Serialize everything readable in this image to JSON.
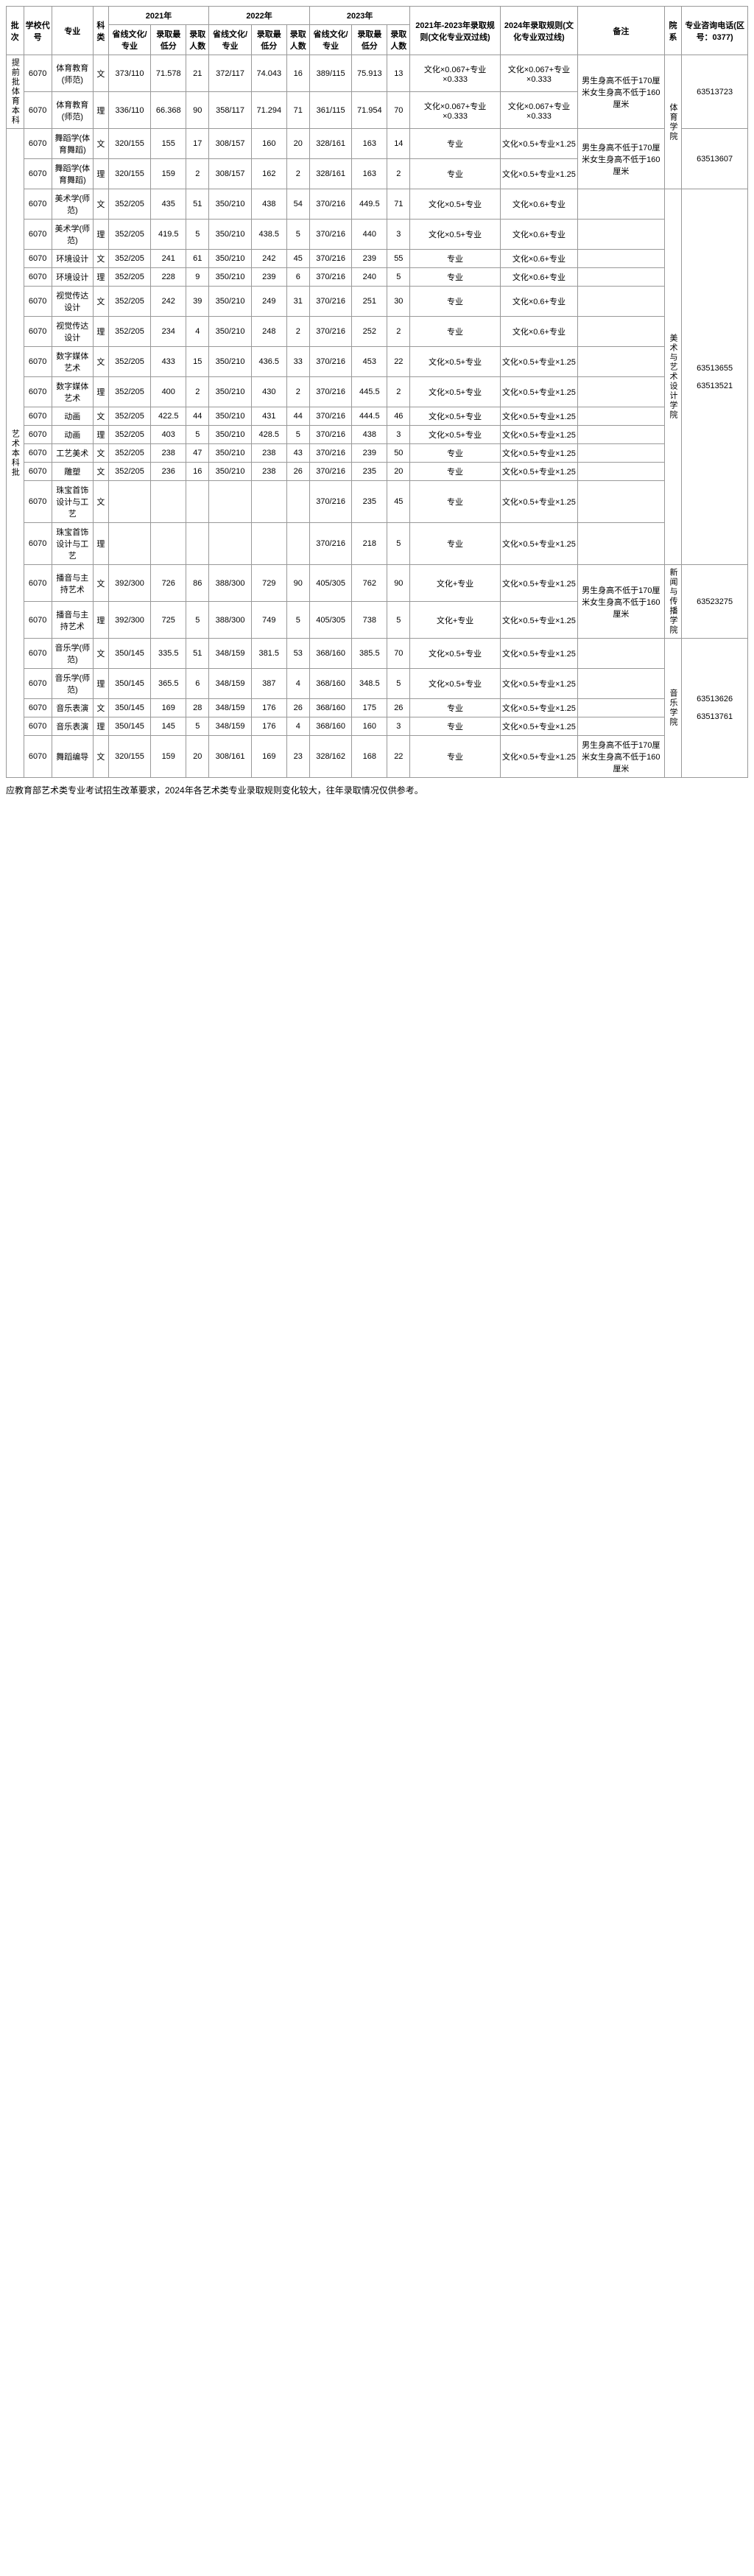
{
  "headers": {
    "batch": "批次",
    "schoolCode": "学校代号",
    "major": "专业",
    "subject": "科类",
    "year2021": "2021年",
    "year2022": "2022年",
    "year2023": "2023年",
    "provinceLine": "省线文化/专业",
    "minScore": "录取最低分",
    "count": "录取人数",
    "rule2123": "2021年-2023年录取规则(文化专业双过线)",
    "rule24": "2024年录取规则(文化专业双过线)",
    "remark": "备注",
    "dept": "院系",
    "phone": "专业咨询电话(区号：0377)"
  },
  "batch1": "提前批体育本科",
  "batch2": "艺术本科批",
  "rows": [
    {
      "major": "体育教育(师范)",
      "subj": "文",
      "p21": "373/110",
      "m21": "71.578",
      "c21": "21",
      "p22": "372/117",
      "m22": "74.043",
      "c22": "16",
      "p23": "389/115",
      "m23": "75.913",
      "c23": "13",
      "rule": "文化×0.067+专业×0.333",
      "rule24": "文化×0.067+专业×0.333"
    },
    {
      "major": "体育教育(师范)",
      "subj": "理",
      "p21": "336/110",
      "m21": "66.368",
      "c21": "90",
      "p22": "358/117",
      "m22": "71.294",
      "c22": "71",
      "p23": "361/115",
      "m23": "71.954",
      "c23": "70",
      "rule": "文化×0.067+专业×0.333",
      "rule24": "文化×0.067+专业×0.333"
    },
    {
      "major": "舞蹈学(体育舞蹈)",
      "subj": "文",
      "p21": "320/155",
      "m21": "155",
      "c21": "17",
      "p22": "308/157",
      "m22": "160",
      "c22": "20",
      "p23": "328/161",
      "m23": "163",
      "c23": "14",
      "rule": "专业",
      "rule24": "文化×0.5+专业×1.25"
    },
    {
      "major": "舞蹈学(体育舞蹈)",
      "subj": "理",
      "p21": "320/155",
      "m21": "159",
      "c21": "2",
      "p22": "308/157",
      "m22": "162",
      "c22": "2",
      "p23": "328/161",
      "m23": "163",
      "c23": "2",
      "rule": "专业",
      "rule24": "文化×0.5+专业×1.25"
    },
    {
      "major": "美术学(师范)",
      "subj": "文",
      "p21": "352/205",
      "m21": "435",
      "c21": "51",
      "p22": "350/210",
      "m22": "438",
      "c22": "54",
      "p23": "370/216",
      "m23": "449.5",
      "c23": "71",
      "rule": "文化×0.5+专业",
      "rule24": "文化×0.6+专业"
    },
    {
      "major": "美术学(师范)",
      "subj": "理",
      "p21": "352/205",
      "m21": "419.5",
      "c21": "5",
      "p22": "350/210",
      "m22": "438.5",
      "c22": "5",
      "p23": "370/216",
      "m23": "440",
      "c23": "3",
      "rule": "文化×0.5+专业",
      "rule24": "文化×0.6+专业"
    },
    {
      "major": "环境设计",
      "subj": "文",
      "p21": "352/205",
      "m21": "241",
      "c21": "61",
      "p22": "350/210",
      "m22": "242",
      "c22": "45",
      "p23": "370/216",
      "m23": "239",
      "c23": "55",
      "rule": "专业",
      "rule24": "文化×0.6+专业"
    },
    {
      "major": "环境设计",
      "subj": "理",
      "p21": "352/205",
      "m21": "228",
      "c21": "9",
      "p22": "350/210",
      "m22": "239",
      "c22": "6",
      "p23": "370/216",
      "m23": "240",
      "c23": "5",
      "rule": "专业",
      "rule24": "文化×0.6+专业"
    },
    {
      "major": "视觉传达设计",
      "subj": "文",
      "p21": "352/205",
      "m21": "242",
      "c21": "39",
      "p22": "350/210",
      "m22": "249",
      "c22": "31",
      "p23": "370/216",
      "m23": "251",
      "c23": "30",
      "rule": "专业",
      "rule24": "文化×0.6+专业"
    },
    {
      "major": "视觉传达设计",
      "subj": "理",
      "p21": "352/205",
      "m21": "234",
      "c21": "4",
      "p22": "350/210",
      "m22": "248",
      "c22": "2",
      "p23": "370/216",
      "m23": "252",
      "c23": "2",
      "rule": "专业",
      "rule24": "文化×0.6+专业"
    },
    {
      "major": "数字媒体艺术",
      "subj": "文",
      "p21": "352/205",
      "m21": "433",
      "c21": "15",
      "p22": "350/210",
      "m22": "436.5",
      "c22": "33",
      "p23": "370/216",
      "m23": "453",
      "c23": "22",
      "rule": "文化×0.5+专业",
      "rule24": "文化×0.5+专业×1.25"
    },
    {
      "major": "数字媒体艺术",
      "subj": "理",
      "p21": "352/205",
      "m21": "400",
      "c21": "2",
      "p22": "350/210",
      "m22": "430",
      "c22": "2",
      "p23": "370/216",
      "m23": "445.5",
      "c23": "2",
      "rule": "文化×0.5+专业",
      "rule24": "文化×0.5+专业×1.25"
    },
    {
      "major": "动画",
      "subj": "文",
      "p21": "352/205",
      "m21": "422.5",
      "c21": "44",
      "p22": "350/210",
      "m22": "431",
      "c22": "44",
      "p23": "370/216",
      "m23": "444.5",
      "c23": "46",
      "rule": "文化×0.5+专业",
      "rule24": "文化×0.5+专业×1.25"
    },
    {
      "major": "动画",
      "subj": "理",
      "p21": "352/205",
      "m21": "403",
      "c21": "5",
      "p22": "350/210",
      "m22": "428.5",
      "c22": "5",
      "p23": "370/216",
      "m23": "438",
      "c23": "3",
      "rule": "文化×0.5+专业",
      "rule24": "文化×0.5+专业×1.25"
    },
    {
      "major": "工艺美术",
      "subj": "文",
      "p21": "352/205",
      "m21": "238",
      "c21": "47",
      "p22": "350/210",
      "m22": "238",
      "c22": "43",
      "p23": "370/216",
      "m23": "239",
      "c23": "50",
      "rule": "专业",
      "rule24": "文化×0.5+专业×1.25"
    },
    {
      "major": "雕塑",
      "subj": "文",
      "p21": "352/205",
      "m21": "236",
      "c21": "16",
      "p22": "350/210",
      "m22": "238",
      "c22": "26",
      "p23": "370/216",
      "m23": "235",
      "c23": "20",
      "rule": "专业",
      "rule24": "文化×0.5+专业×1.25"
    },
    {
      "major": "珠宝首饰设计与工艺",
      "subj": "文",
      "p21": "",
      "m21": "",
      "c21": "",
      "p22": "",
      "m22": "",
      "c22": "",
      "p23": "370/216",
      "m23": "235",
      "c23": "45",
      "rule": "专业",
      "rule24": "文化×0.5+专业×1.25"
    },
    {
      "major": "珠宝首饰设计与工艺",
      "subj": "理",
      "p21": "",
      "m21": "",
      "c21": "",
      "p22": "",
      "m22": "",
      "c22": "",
      "p23": "370/216",
      "m23": "218",
      "c23": "5",
      "rule": "专业",
      "rule24": "文化×0.5+专业×1.25"
    },
    {
      "major": "播音与主持艺术",
      "subj": "文",
      "p21": "392/300",
      "m21": "726",
      "c21": "86",
      "p22": "388/300",
      "m22": "729",
      "c22": "90",
      "p23": "405/305",
      "m23": "762",
      "c23": "90",
      "rule": "文化+专业",
      "rule24": "文化×0.5+专业×1.25"
    },
    {
      "major": "播音与主持艺术",
      "subj": "理",
      "p21": "392/300",
      "m21": "725",
      "c21": "5",
      "p22": "388/300",
      "m22": "749",
      "c22": "5",
      "p23": "405/305",
      "m23": "738",
      "c23": "5",
      "rule": "文化+专业",
      "rule24": "文化×0.5+专业×1.25"
    },
    {
      "major": "音乐学(师范)",
      "subj": "文",
      "p21": "350/145",
      "m21": "335.5",
      "c21": "51",
      "p22": "348/159",
      "m22": "381.5",
      "c22": "53",
      "p23": "368/160",
      "m23": "385.5",
      "c23": "70",
      "rule": "文化×0.5+专业",
      "rule24": "文化×0.5+专业×1.25"
    },
    {
      "major": "音乐学(师范)",
      "subj": "理",
      "p21": "350/145",
      "m21": "365.5",
      "c21": "6",
      "p22": "348/159",
      "m22": "387",
      "c22": "4",
      "p23": "368/160",
      "m23": "348.5",
      "c23": "5",
      "rule": "文化×0.5+专业",
      "rule24": "文化×0.5+专业×1.25"
    },
    {
      "major": "音乐表演",
      "subj": "文",
      "p21": "350/145",
      "m21": "169",
      "c21": "28",
      "p22": "348/159",
      "m22": "176",
      "c22": "26",
      "p23": "368/160",
      "m23": "175",
      "c23": "26",
      "rule": "专业",
      "rule24": "文化×0.5+专业×1.25"
    },
    {
      "major": "音乐表演",
      "subj": "理",
      "p21": "350/145",
      "m21": "145",
      "c21": "5",
      "p22": "348/159",
      "m22": "176",
      "c22": "4",
      "p23": "368/160",
      "m23": "160",
      "c23": "3",
      "rule": "专业",
      "rule24": "文化×0.5+专业×1.25"
    },
    {
      "major": "舞蹈编导",
      "subj": "文",
      "p21": "320/155",
      "m21": "159",
      "c21": "20",
      "p22": "308/161",
      "m22": "169",
      "c22": "23",
      "p23": "328/162",
      "m23": "168",
      "c23": "22",
      "rule": "专业",
      "rule24": "文化×0.5+专业×1.25"
    }
  ],
  "remark1": "男生身高不低于170厘米女生身高不低于160厘米",
  "remark2": "男生身高不低于170厘米女生身高不低于160厘米",
  "code": "6070",
  "dept1": "体育学院",
  "dept2": "美术与艺术设计学院",
  "dept3": "新闻与传播学院",
  "dept4": "音乐学院",
  "ph1": "63513723",
  "ph2": "63513607",
  "ph3": "63513655",
  "ph4": "63513521",
  "ph5": "63523275",
  "ph6": "63513626",
  "ph7": "63513761",
  "footnote": "应教育部艺术类专业考试招生改革要求，2024年各艺术类专业录取规则变化较大，往年录取情况仅供参考。"
}
